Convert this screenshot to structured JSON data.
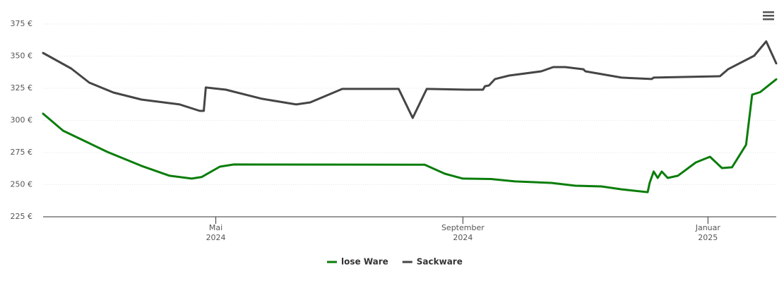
{
  "chart_data": {
    "type": "line",
    "xlim": [
      "2024-02-05",
      "2025-02-04"
    ],
    "xticks": [
      {
        "value": "2024-05-01",
        "label": [
          "Mai",
          "2024"
        ]
      },
      {
        "value": "2024-09-01",
        "label": [
          "September",
          "2024"
        ]
      },
      {
        "value": "2025-01-01",
        "label": [
          "Januar",
          "2025"
        ]
      }
    ],
    "ylim": [
      225,
      375
    ],
    "yticks": [
      {
        "value": 225,
        "label": "225 €"
      },
      {
        "value": 250,
        "label": "250 €"
      },
      {
        "value": 275,
        "label": "275 €"
      },
      {
        "value": 300,
        "label": "300 €"
      },
      {
        "value": 325,
        "label": "325 €"
      },
      {
        "value": 350,
        "label": "350 €"
      },
      {
        "value": 375,
        "label": "375 €"
      }
    ],
    "grid": true,
    "legend": "bottom",
    "series": [
      {
        "name": "lose Ware",
        "color": "#0a7d0a",
        "x": [
          "2024-02-05",
          "2024-02-15",
          "2024-03-08",
          "2024-03-25",
          "2024-04-08",
          "2024-04-19",
          "2024-04-24",
          "2024-05-03",
          "2024-05-10",
          "2024-08-13",
          "2024-08-23",
          "2024-09-01",
          "2024-09-15",
          "2024-09-27",
          "2024-10-15",
          "2024-10-27",
          "2024-11-09",
          "2024-11-19",
          "2024-12-02",
          "2024-12-03",
          "2024-12-05",
          "2024-12-07",
          "2024-12-09",
          "2024-12-12",
          "2024-12-17",
          "2024-12-26",
          "2025-01-02",
          "2025-01-08",
          "2025-01-13",
          "2025-01-20",
          "2025-01-23",
          "2025-01-27",
          "2025-02-04"
        ],
        "values": [
          305.2,
          292,
          275.5,
          264.6,
          256.9,
          254.7,
          256,
          264,
          265.7,
          265.5,
          258.5,
          254.7,
          254.4,
          252.5,
          251.4,
          249.2,
          248.6,
          246.4,
          244.2,
          251.4,
          260.2,
          255.2,
          260.2,
          255.2,
          256.9,
          267.3,
          271.7,
          262.9,
          263.5,
          281,
          320,
          322,
          332
        ]
      },
      {
        "name": "Sackware",
        "color": "#454545",
        "x": [
          "2024-02-05",
          "2024-02-19",
          "2024-02-28",
          "2024-03-11",
          "2024-03-25",
          "2024-04-13",
          "2024-04-23",
          "2024-04-25",
          "2024-04-26",
          "2024-05-06",
          "2024-05-24",
          "2024-06-10",
          "2024-06-17",
          "2024-07-03",
          "2024-07-31",
          "2024-08-07",
          "2024-08-14",
          "2024-09-03",
          "2024-09-11",
          "2024-09-12",
          "2024-09-14",
          "2024-09-17",
          "2024-09-24",
          "2024-10-10",
          "2024-10-16",
          "2024-10-22",
          "2024-10-31",
          "2024-11-01",
          "2024-11-19",
          "2024-12-04",
          "2024-12-05",
          "2025-01-07",
          "2025-01-11",
          "2025-01-24",
          "2025-01-30",
          "2025-02-04"
        ],
        "values": [
          352.5,
          340.4,
          329.4,
          321.7,
          316.2,
          312.4,
          307.4,
          307.4,
          325.6,
          323.9,
          316.8,
          312.4,
          314,
          324.5,
          324.5,
          301.9,
          324.5,
          323.9,
          323.9,
          326.6,
          327.2,
          332.2,
          334.9,
          338.2,
          341.5,
          341.5,
          339.8,
          338.2,
          333.3,
          332.2,
          333.3,
          334.4,
          339.8,
          350.3,
          361.5,
          344.4
        ]
      }
    ]
  }
}
